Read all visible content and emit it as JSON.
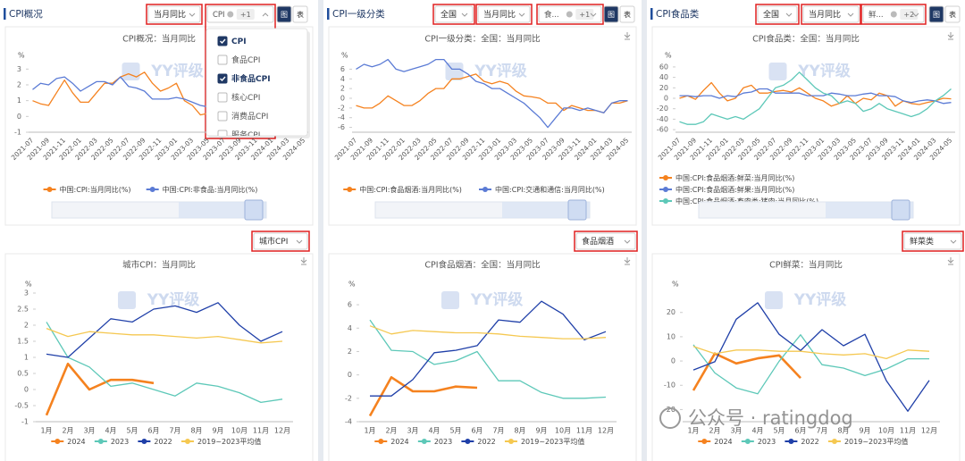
{
  "panels": [
    {
      "header": "CPI概况",
      "selects": [
        "当月同比"
      ],
      "tag": "CPI",
      "more": "+1",
      "buttons": [
        "图",
        "表"
      ],
      "bottom_select": "城市CPI"
    },
    {
      "header": "CPI一级分类",
      "selects": [
        "全国",
        "当月同比"
      ],
      "tag": "食...",
      "more": "+1",
      "buttons": [
        "图",
        "表"
      ],
      "bottom_select": "食品烟酒"
    },
    {
      "header": "CPI食品类",
      "selects": [
        "全国",
        "当月同比"
      ],
      "tag": "鲜...",
      "more": "+2",
      "buttons": [
        "图",
        "表"
      ],
      "bottom_select": "鲜菜类"
    }
  ],
  "dropdown": {
    "items": [
      {
        "label": "CPI",
        "checked": true
      },
      {
        "label": "食品CPI",
        "checked": false
      },
      {
        "label": "非食品CPI",
        "checked": true
      },
      {
        "label": "核心CPI",
        "checked": false
      },
      {
        "label": "消费品CPI",
        "checked": false
      },
      {
        "label": "服务CPI",
        "checked": false
      }
    ]
  },
  "watermark": "YY评级",
  "footer": "公众号 · ratingdog",
  "chart_data": [
    {
      "type": "line",
      "title": "CPI概况：当月同比",
      "y_label": "%",
      "categories": [
        "2021-07",
        null,
        "2021-09",
        null,
        "2021-11",
        null,
        "2022-01",
        null,
        "2022-03",
        null,
        "2022-05",
        null,
        "2022-07",
        null,
        "2022-09",
        null,
        "2022-11",
        null,
        "2023-01",
        null,
        "2023-03",
        null,
        "2023-05",
        null,
        "2023-07",
        null,
        "2023-09",
        null,
        "2023-11",
        null,
        "2024-01",
        null,
        "2024-03",
        null,
        "2024-05"
      ],
      "series": [
        {
          "name": "中国:CPI:当月同比(%)",
          "color": "#f5821f",
          "values": [
            1.0,
            0.8,
            0.7,
            1.5,
            2.3,
            1.5,
            0.9,
            0.9,
            1.5,
            2.1,
            2.1,
            2.5,
            2.7,
            2.5,
            2.8,
            2.1,
            1.6,
            1.8,
            2.1,
            1.0,
            0.7,
            0.1,
            0.2,
            0.0,
            -0.3,
            0.1,
            0.0,
            -0.2,
            -0.5,
            -0.3,
            -0.8,
            0.7,
            0.1,
            0.3,
            0.3
          ]
        },
        {
          "name": "中国:CPI:非食品:当月同比(%)",
          "color": "#5b7bd5",
          "values": [
            1.7,
            2.1,
            2.0,
            2.4,
            2.5,
            2.1,
            1.6,
            1.9,
            2.2,
            2.2,
            2.0,
            2.5,
            1.9,
            1.8,
            1.6,
            1.1,
            1.1,
            1.1,
            1.2,
            1.1,
            0.9,
            0.7,
            0.6,
            0.0,
            -0.5,
            0.0,
            0.0,
            0.1,
            0.0,
            0.3,
            0.4,
            0.9,
            0.2,
            0.4,
            0.4
          ]
        }
      ],
      "ylim": [
        -1,
        3.3
      ],
      "yticks": [
        -1,
        0,
        1,
        2,
        3
      ]
    },
    {
      "type": "line",
      "title": "CPI一级分类：全国：当月同比",
      "y_label": "%",
      "categories": [
        "2021-07",
        null,
        "2021-09",
        null,
        "2021-11",
        null,
        "2022-01",
        null,
        "2022-03",
        null,
        "2022-05",
        null,
        "2022-07",
        null,
        "2022-09",
        null,
        "2022-11",
        null,
        "2023-01",
        null,
        "2023-03",
        null,
        "2023-05",
        null,
        "2023-07",
        null,
        "2023-09",
        null,
        "2023-11",
        null,
        "2024-01",
        null,
        "2024-03",
        null,
        "2024-05"
      ],
      "series": [
        {
          "name": "中国:CPI:食品烟酒:当月同比(%)",
          "color": "#f5821f",
          "values": [
            -1.5,
            -2,
            -2,
            -1,
            0.5,
            -0.5,
            -1.5,
            -1.5,
            -0.5,
            1,
            2,
            2,
            4,
            4,
            4.5,
            5,
            3.5,
            3,
            3.5,
            3,
            1.5,
            0.5,
            0.3,
            0,
            -1,
            -1,
            -2.5,
            -1.5,
            -2,
            -2.5,
            -2.5,
            -3,
            -1,
            -1,
            -0.5
          ]
        },
        {
          "name": "中国:CPI:交通和通信:当月同比(%)",
          "color": "#5b7bd5",
          "values": [
            6,
            7,
            6.5,
            7,
            8,
            6,
            5.5,
            6,
            6.5,
            7,
            8,
            8,
            6,
            6,
            5,
            3.5,
            3,
            2,
            2,
            1,
            0,
            -1,
            -2.5,
            -4,
            -6,
            -4,
            -2,
            -2,
            -2.5,
            -2,
            -2.5,
            -3,
            -1,
            -0.5,
            -0.5
          ]
        }
      ],
      "ylim": [
        -7,
        7
      ],
      "yticks": [
        -6,
        -4,
        -2,
        0,
        2,
        4,
        6
      ]
    },
    {
      "type": "line",
      "title": "CPI食品类：全国：当月同比",
      "y_label": "%",
      "categories": [
        "2021-07",
        null,
        "2021-09",
        null,
        "2021-11",
        null,
        "2022-01",
        null,
        "2022-03",
        null,
        "2022-05",
        null,
        "2022-07",
        null,
        "2022-09",
        null,
        "2022-11",
        null,
        "2023-01",
        null,
        "2023-03",
        null,
        "2023-05",
        null,
        "2023-07",
        null,
        "2023-09",
        null,
        "2023-11",
        null,
        "2024-01",
        null,
        "2024-03",
        null,
        "2024-05"
      ],
      "series": [
        {
          "name": "中国:CPI:食品烟酒:鲜菜:当月同比(%)",
          "color": "#f5821f",
          "values": [
            0,
            5,
            -2,
            15,
            30,
            10,
            -5,
            0,
            20,
            25,
            10,
            10,
            13,
            15,
            12,
            20,
            10,
            0,
            -5,
            -15,
            -10,
            5,
            -10,
            0,
            -3,
            10,
            5,
            -15,
            -5,
            -10,
            -12,
            -8,
            -5,
            0,
            -1
          ]
        },
        {
          "name": "中国:CPI:食品烟酒:鲜果:当月同比(%)",
          "color": "#5b7bd5",
          "values": [
            5,
            5,
            3,
            5,
            5,
            0,
            5,
            3,
            10,
            12,
            18,
            18,
            10,
            10,
            10,
            10,
            5,
            5,
            5,
            10,
            8,
            5,
            5,
            8,
            10,
            5,
            5,
            3,
            -5,
            -8,
            -5,
            -3,
            -5,
            -10,
            -8
          ]
        },
        {
          "name": "中国:CPI:食品烟酒:畜肉类:猪肉:当月同比(%)",
          "color": "#5dc8b8",
          "values": [
            -45,
            -50,
            -50,
            -45,
            -30,
            -35,
            -40,
            -35,
            -40,
            -30,
            -20,
            0,
            20,
            25,
            35,
            50,
            35,
            20,
            10,
            5,
            -10,
            -5,
            -10,
            -25,
            -20,
            -10,
            -20,
            -25,
            -30,
            -35,
            -30,
            -20,
            -5,
            5,
            18
          ]
        }
      ],
      "ylim": [
        -65,
        65
      ],
      "yticks": [
        -60,
        -40,
        -20,
        0,
        20,
        40,
        60
      ]
    },
    {
      "type": "line",
      "title": "城市CPI：当月同比",
      "y_label": "%",
      "categories": [
        "1月",
        "2月",
        "3月",
        "4月",
        "5月",
        "6月",
        "7月",
        "8月",
        "9月",
        "10月",
        "11月",
        "12月"
      ],
      "series": [
        {
          "name": "2024",
          "color": "#f5821f",
          "values": [
            -0.8,
            0.8,
            0.0,
            0.3,
            0.3,
            0.2,
            null,
            null,
            null,
            null,
            null,
            null
          ]
        },
        {
          "name": "2023",
          "color": "#5dc8b8",
          "values": [
            2.1,
            1.0,
            0.7,
            0.1,
            0.2,
            0.0,
            -0.2,
            0.2,
            0.1,
            -0.1,
            -0.4,
            -0.3
          ]
        },
        {
          "name": "2022",
          "color": "#1f3fa8",
          "values": [
            1.1,
            1.0,
            1.6,
            2.2,
            2.1,
            2.5,
            2.6,
            2.4,
            2.7,
            2.0,
            1.5,
            1.8
          ]
        },
        {
          "name": "2019~2023平均值",
          "color": "#f5c851",
          "values": [
            1.9,
            1.65,
            1.8,
            1.75,
            1.7,
            1.7,
            1.65,
            1.6,
            1.65,
            1.55,
            1.45,
            1.5
          ]
        }
      ],
      "ylim": [
        -1,
        3
      ],
      "yticks": [
        -1,
        -0.5,
        0,
        0.5,
        1,
        1.5,
        2,
        2.5,
        3
      ]
    },
    {
      "type": "line",
      "title": "CPI食品烟酒：全国：当月同比",
      "y_label": "%",
      "categories": [
        "1月",
        "2月",
        "3月",
        "4月",
        "5月",
        "6月",
        "7月",
        "8月",
        "9月",
        "10月",
        "11月",
        "12月"
      ],
      "series": [
        {
          "name": "2024",
          "color": "#f5821f",
          "values": [
            -3.5,
            -0.2,
            -1.4,
            -1.4,
            -1.0,
            -1.1,
            null,
            null,
            null,
            null,
            null,
            null
          ]
        },
        {
          "name": "2023",
          "color": "#5dc8b8",
          "values": [
            4.7,
            2.1,
            2.0,
            0.9,
            1.2,
            2.0,
            -0.5,
            -0.5,
            -1.5,
            -2.0,
            -2.0,
            -1.9
          ]
        },
        {
          "name": "2022",
          "color": "#1f3fa8",
          "values": [
            -1.8,
            -1.8,
            -0.4,
            1.9,
            2.1,
            2.5,
            4.7,
            4.5,
            6.3,
            5.2,
            3.0,
            3.7
          ]
        },
        {
          "name": "2019~2023平均值",
          "color": "#f5c851",
          "values": [
            4.2,
            3.5,
            3.8,
            3.7,
            3.6,
            3.6,
            3.5,
            3.3,
            3.2,
            3.1,
            3.1,
            3.2
          ]
        }
      ],
      "ylim": [
        -4,
        7
      ],
      "yticks": [
        -4,
        -2,
        0,
        2,
        4,
        6
      ]
    },
    {
      "type": "line",
      "title": "CPI鲜菜：当月同比",
      "y_label": "%",
      "categories": [
        "1月",
        "2月",
        "3月",
        "4月",
        "5月",
        "6月",
        "7月",
        "8月",
        "9月",
        "10月",
        "11月",
        "12月"
      ],
      "series": [
        {
          "name": "2024",
          "color": "#f5821f",
          "values": [
            -12.1,
            3.1,
            -1.0,
            1.1,
            2.3,
            -7.0,
            null,
            null,
            null,
            null,
            null,
            null
          ]
        },
        {
          "name": "2023",
          "color": "#5dc8b8",
          "values": [
            6.7,
            -4.9,
            -11.1,
            -13.5,
            -0.1,
            10.8,
            -1.5,
            -2.9,
            -6.0,
            -3.3,
            0.9,
            0.9
          ]
        },
        {
          "name": "2022",
          "color": "#1f3fa8",
          "values": [
            -3.7,
            -0.3,
            17.2,
            24.0,
            11.0,
            4.3,
            12.9,
            6.3,
            11.0,
            -8.1,
            -20.7,
            -8.0
          ]
        },
        {
          "name": "2019~2023平均值",
          "color": "#f5c851",
          "values": [
            6,
            3,
            4.5,
            4.5,
            4,
            4,
            3,
            2.5,
            3,
            1,
            4.5,
            4
          ]
        }
      ],
      "ylim": [
        -25,
        28
      ],
      "yticks": [
        -20,
        -10,
        0,
        10,
        20
      ]
    }
  ]
}
